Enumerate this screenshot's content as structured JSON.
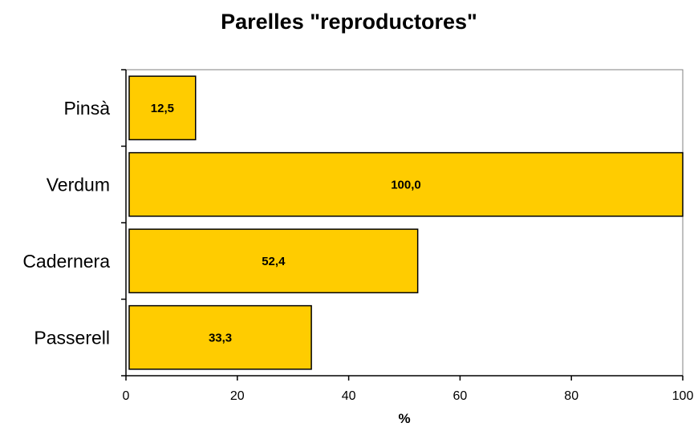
{
  "chart_data": {
    "type": "bar",
    "orientation": "horizontal",
    "title": "Parelles \"reproductores\"",
    "xlabel": "%",
    "ylabel": "",
    "categories": [
      "Pinsà",
      "Verdum",
      "Cadernera",
      "Passerell"
    ],
    "values": [
      12.5,
      100.0,
      52.4,
      33.3
    ],
    "data_labels": [
      "12,5",
      "100,0",
      "52,4",
      "33,3"
    ],
    "xlim": [
      0,
      100
    ],
    "x_ticks": [
      0,
      20,
      40,
      60,
      80,
      100
    ],
    "x_tick_labels": [
      "0",
      "20",
      "40",
      "60",
      "80",
      "100"
    ],
    "grid": false,
    "legend": "none",
    "colors": {
      "bar_fill": "#FFCC00",
      "bar_stroke": "#000000",
      "axis": "#000000",
      "frame": "#808080"
    }
  }
}
